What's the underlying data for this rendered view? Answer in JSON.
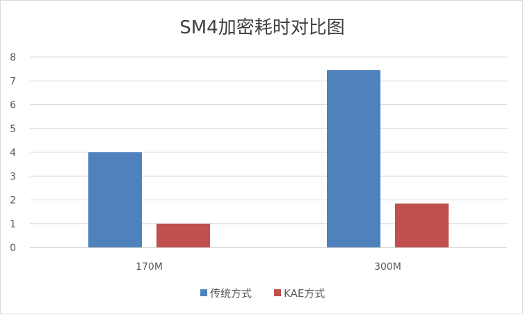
{
  "chart_data": {
    "type": "bar",
    "title": "SM4加密耗时对比图",
    "xlabel": "",
    "ylabel": "",
    "categories": [
      "170M",
      "300M"
    ],
    "series": [
      {
        "name": "传统方式",
        "values": [
          4.0,
          7.45
        ],
        "color": "#4f81bd"
      },
      {
        "name": "KAE方式",
        "values": [
          1.0,
          1.85
        ],
        "color": "#c0504d"
      }
    ],
    "ylim": [
      0,
      8
    ],
    "yticks": [
      "0",
      "1",
      "2",
      "3",
      "4",
      "5",
      "6",
      "7",
      "8"
    ],
    "grid": true,
    "legend": "bottom"
  }
}
